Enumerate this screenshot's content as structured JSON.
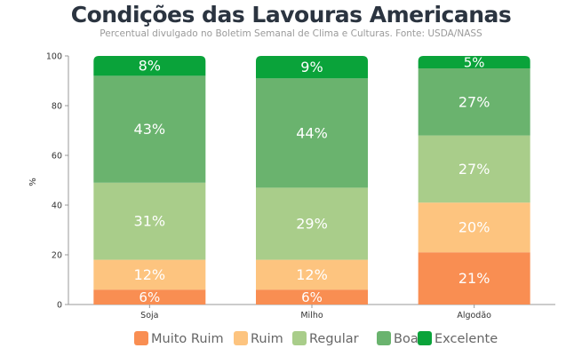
{
  "chart_data": {
    "type": "bar",
    "stacked": true,
    "title": "Condições das Lavouras Americanas",
    "subtitle": "Percentual divulgado no Boletim Semanal de Clima e Culturas. Fonte: USDA/NASS",
    "xlabel": "",
    "ylabel": "%",
    "ylim": [
      0,
      100
    ],
    "yticks": [
      0,
      20,
      40,
      60,
      80,
      100
    ],
    "grid": false,
    "legend": "bottom",
    "categories": [
      "Soja",
      "Milho",
      "Algodão"
    ],
    "series": [
      {
        "name": "Muito Ruim",
        "color": "#f98e52",
        "values": [
          6,
          6,
          21
        ]
      },
      {
        "name": "Ruim",
        "color": "#fdc47f",
        "values": [
          12,
          12,
          20
        ]
      },
      {
        "name": "Regular",
        "color": "#a9cd8a",
        "values": [
          31,
          29,
          27
        ]
      },
      {
        "name": "Boa",
        "color": "#6ab36e",
        "values": [
          43,
          44,
          27
        ]
      },
      {
        "name": "Excelente",
        "color": "#0aa33a",
        "values": [
          8,
          9,
          5
        ]
      }
    ]
  }
}
